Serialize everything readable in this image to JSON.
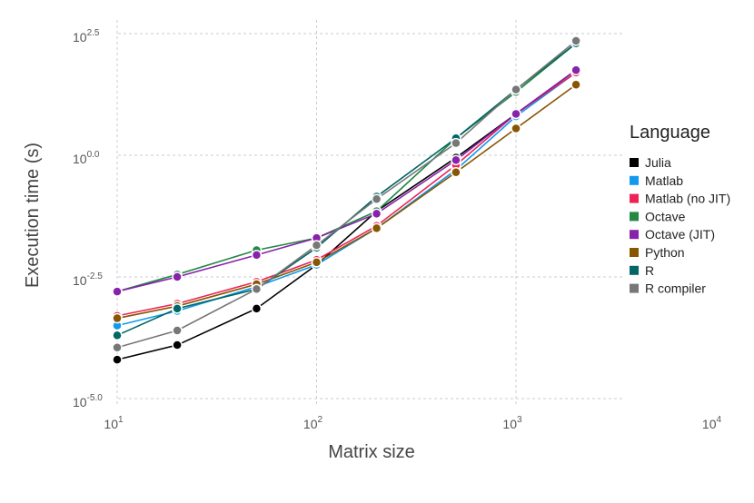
{
  "chart_data": {
    "type": "line",
    "title": "",
    "xlabel": "Matrix size",
    "ylabel": "Execution time (s)",
    "x_scale": "log10",
    "y_scale": "log10",
    "xlim": [
      10,
      3500
    ],
    "ylim": [
      -5,
      2.5
    ],
    "x_ticks": [
      {
        "base": "10",
        "exp": "1",
        "value": 10
      },
      {
        "base": "10",
        "exp": "2",
        "value": 100
      },
      {
        "base": "10",
        "exp": "3",
        "value": 1000
      },
      {
        "base": "10",
        "exp": "4",
        "value": 10000
      }
    ],
    "y_ticks": [
      {
        "base": "10",
        "exp": "2.5",
        "value": 2.5
      },
      {
        "base": "10",
        "exp": "0.0",
        "value": 0
      },
      {
        "base": "10",
        "exp": "-2.5",
        "value": -2.5
      },
      {
        "base": "10",
        "exp": "-5.0",
        "value": -5
      }
    ],
    "grid": true,
    "legend": {
      "title": "Language",
      "position": "right"
    },
    "x": [
      10,
      20,
      50,
      100,
      200,
      500,
      1000,
      2000
    ],
    "y_value_meaning": "log10 of execution time in seconds",
    "series": [
      {
        "name": "Julia",
        "color": "#000000",
        "values": [
          -4.2,
          -3.9,
          -3.15,
          -2.25,
          -1.15,
          -0.05,
          0.85,
          1.75
        ]
      },
      {
        "name": "Matlab",
        "color": "#1199ee",
        "values": [
          -3.5,
          -3.2,
          -2.7,
          -2.25,
          -1.5,
          -0.3,
          0.8,
          1.7
        ]
      },
      {
        "name": "Matlab (no JIT)",
        "color": "#ee2255",
        "values": [
          -3.3,
          -3.05,
          -2.6,
          -2.15,
          -1.45,
          -0.2,
          0.85,
          1.7
        ]
      },
      {
        "name": "Octave",
        "color": "#228844",
        "values": [
          -2.8,
          -2.45,
          -1.95,
          -1.7,
          -1.15,
          0.35,
          1.3,
          2.3
        ]
      },
      {
        "name": "Octave (JIT)",
        "color": "#8822aa",
        "values": [
          -2.8,
          -2.5,
          -2.05,
          -1.7,
          -1.2,
          -0.1,
          0.85,
          1.75
        ]
      },
      {
        "name": "Python",
        "color": "#885500",
        "values": [
          -3.35,
          -3.1,
          -2.65,
          -2.2,
          -1.5,
          -0.35,
          0.55,
          1.45
        ]
      },
      {
        "name": "R",
        "color": "#006666",
        "values": [
          -3.7,
          -3.15,
          -2.75,
          -1.9,
          -0.85,
          0.35,
          1.35,
          2.3
        ]
      },
      {
        "name": "R compiler",
        "color": "#777777",
        "values": [
          -3.95,
          -3.6,
          -2.75,
          -1.85,
          -0.9,
          0.25,
          1.35,
          2.35
        ]
      }
    ]
  }
}
